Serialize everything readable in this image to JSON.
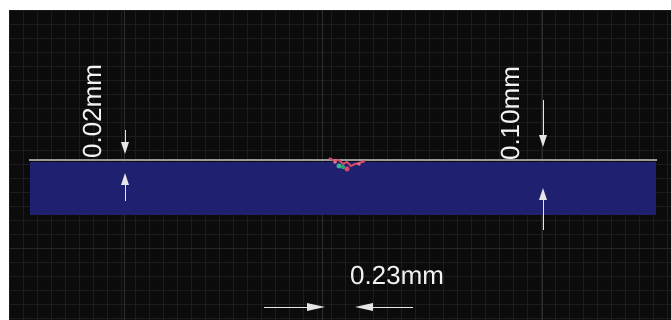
{
  "dimensions": {
    "left_depth_label": "0.02mm",
    "right_depth_label": "0.10mm",
    "width_label": "0.23mm"
  },
  "colors": {
    "background": "#0b0b0b",
    "grid": "#1c1c1c",
    "plate": "#1f2070",
    "surface": "#9a9a9a",
    "annotation": "#f2f2f2",
    "defect": "#d84a6a"
  },
  "icons": [
    "arrow-down-icon",
    "arrow-up-icon",
    "arrow-right-icon",
    "arrow-left-icon"
  ]
}
